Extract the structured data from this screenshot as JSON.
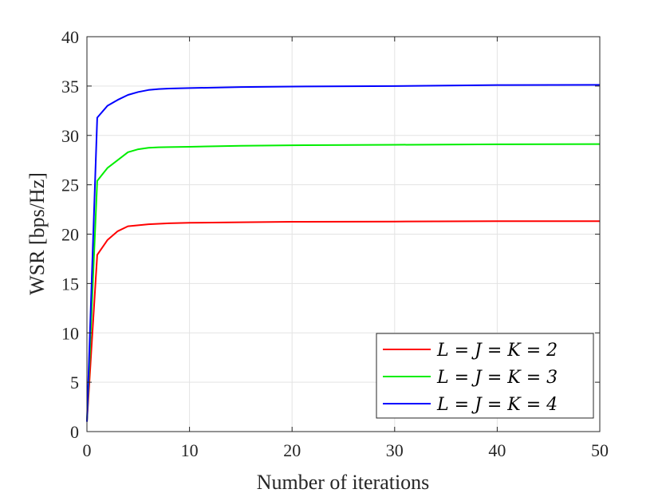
{
  "chart_data": {
    "type": "line",
    "xlabel": "Number of iterations",
    "ylabel": "WSR [bps/Hz]",
    "xlim": [
      0,
      50
    ],
    "ylim": [
      0,
      40
    ],
    "xticks": [
      0,
      10,
      20,
      30,
      40,
      50
    ],
    "yticks": [
      0,
      5,
      10,
      15,
      20,
      25,
      30,
      35,
      40
    ],
    "grid": true,
    "legend_position": "bottom-right",
    "series": [
      {
        "name": "L = J = K = 2",
        "color": "#ff0000",
        "x": [
          0,
          1,
          2,
          3,
          4,
          5,
          6,
          7,
          8,
          10,
          15,
          20,
          30,
          40,
          50
        ],
        "y": [
          1.0,
          17.9,
          19.4,
          20.3,
          20.8,
          20.9,
          21.0,
          21.05,
          21.1,
          21.15,
          21.2,
          21.25,
          21.28,
          21.32,
          21.32
        ]
      },
      {
        "name": "L = J = K = 3",
        "color": "#00ee00",
        "x": [
          0,
          1,
          2,
          3,
          4,
          5,
          6,
          7,
          8,
          10,
          15,
          20,
          30,
          40,
          50
        ],
        "y": [
          1.0,
          25.4,
          26.7,
          27.5,
          28.3,
          28.6,
          28.75,
          28.8,
          28.82,
          28.85,
          28.95,
          29.0,
          29.05,
          29.1,
          29.12
        ]
      },
      {
        "name": "L = J = K = 4",
        "color": "#0000ff",
        "x": [
          0,
          1,
          2,
          3,
          4,
          5,
          6,
          7,
          8,
          10,
          15,
          20,
          30,
          40,
          50
        ],
        "y": [
          1.0,
          31.8,
          33.0,
          33.6,
          34.1,
          34.4,
          34.6,
          34.7,
          34.75,
          34.8,
          34.9,
          34.95,
          35.0,
          35.1,
          35.12
        ]
      }
    ]
  }
}
